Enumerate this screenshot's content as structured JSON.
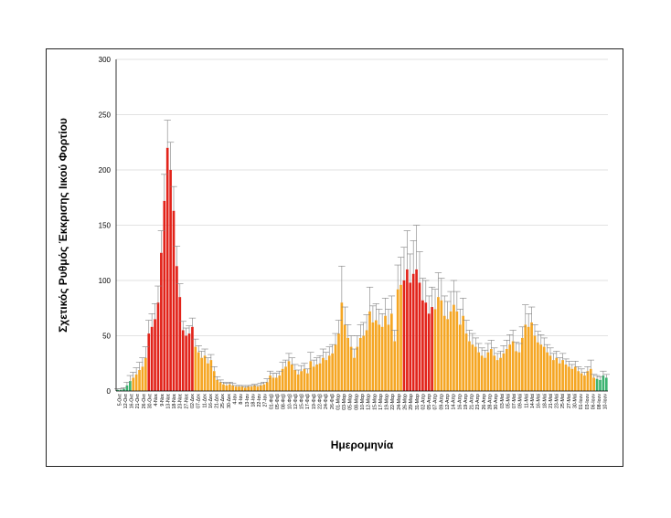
{
  "chart_data": {
    "type": "bar",
    "title": "",
    "xlabel": "Ημερομηνία",
    "ylabel": "Σχετικός Ρυθμός Έκκρισης Ιικού Φορτίου",
    "ylim": [
      0,
      300
    ],
    "yticks": [
      "0",
      "50",
      "100",
      "150",
      "200",
      "250",
      "300"
    ],
    "grid": true,
    "legend": "none",
    "colors": {
      "green": "#3cb371",
      "orange": "#f5a623",
      "red": "#e2231a",
      "error": "#808080",
      "grid": "#d9d9d9",
      "axis": "#000000"
    },
    "xlabels": [
      "5-Οκτ",
      "12-Οκτ",
      "16-Οκτ",
      "21-Οκτ",
      "26-Οκτ",
      "30-Οκτ",
      "4-Νοε",
      "9-Νοε",
      "13-Νοε",
      "18-Νοε",
      "23-Νοε",
      "27-Νοε",
      "02-Δεκ",
      "07-Δεκ",
      "11-Δεκ",
      "16-Δεκ",
      "21-Δεκ",
      "25-Δεκ",
      "30-Δεκ",
      "4-Ιαν",
      "8-Ιαν",
      "13-Ιαν",
      "18-Ιαν",
      "22-Ιαν",
      "27-Ιαν",
      "01-Φεβ",
      "05-Φεβ",
      "08-Φεβ",
      "10-Φεβ",
      "12-Φεβ",
      "15-Φεβ",
      "17-Φεβ",
      "19-Φεβ",
      "22-Φεβ",
      "24-Φεβ",
      "26-Φεβ",
      "01-Μαρ",
      "03-Μαρ",
      "05-Μαρ",
      "08-Μαρ",
      "10-Μαρ",
      "12-Μαρ",
      "15-Μαρ",
      "17-Μαρ",
      "19-Μαρ",
      "22-Μαρ",
      "24-Μαρ",
      "26-Μαρ",
      "29-Μαρ",
      "31-Μαρ",
      "02-Απρ",
      "05-Απρ",
      "07-Απρ",
      "09-Απρ",
      "12-Απρ",
      "14-Απρ",
      "16-Απρ",
      "19-Απρ",
      "21-Απρ",
      "23-Απρ",
      "26-Απρ",
      "28-Απρ",
      "30-Απρ",
      "03-Μαϊ",
      "05-Μαϊ",
      "07-Μαϊ",
      "09-Μαϊ",
      "11-Μαϊ",
      "14-Μαϊ",
      "16-Μαϊ",
      "18-Μαϊ",
      "21-Μαϊ",
      "23-Μαϊ",
      "25-Μαϊ",
      "27-Μαϊ",
      "30-Μαϊ",
      "01-Ιουν",
      "03-Ιουν",
      "06-Ιουν",
      "08-Ιουν",
      "10-Ιουν"
    ],
    "values": [
      1,
      1,
      2,
      5,
      9,
      12,
      15,
      19,
      22,
      30,
      52,
      58,
      65,
      80,
      125,
      172,
      220,
      200,
      163,
      113,
      85,
      55,
      50,
      52,
      58,
      40,
      35,
      30,
      32,
      25,
      28,
      18,
      10,
      8,
      6,
      5,
      6,
      5,
      4,
      4,
      4,
      3,
      4,
      4,
      5,
      4,
      5,
      6,
      8,
      14,
      12,
      12,
      14,
      20,
      22,
      27,
      24,
      19,
      15,
      18,
      20,
      16,
      27,
      22,
      24,
      25,
      30,
      28,
      32,
      34,
      42,
      52,
      80,
      60,
      48,
      40,
      30,
      40,
      48,
      50,
      55,
      72,
      62,
      64,
      60,
      58,
      68,
      60,
      70,
      45,
      92,
      96,
      100,
      110,
      98,
      106,
      110,
      98,
      82,
      80,
      70,
      76,
      74,
      85,
      82,
      68,
      65,
      72,
      78,
      72,
      60,
      68,
      52,
      45,
      42,
      40,
      35,
      32,
      30,
      35,
      38,
      32,
      28,
      30,
      34,
      38,
      42,
      45,
      36,
      35,
      48,
      60,
      58,
      62,
      50,
      44,
      42,
      40,
      35,
      32,
      28,
      30,
      25,
      28,
      24,
      22,
      20,
      22,
      18,
      16,
      14,
      18,
      20,
      12,
      11,
      10,
      14,
      12
    ],
    "errors": [
      1,
      1,
      1,
      3,
      5,
      5,
      6,
      7,
      8,
      10,
      12,
      12,
      14,
      15,
      20,
      24,
      25,
      25,
      22,
      18,
      12,
      8,
      7,
      7,
      8,
      7,
      6,
      6,
      6,
      5,
      5,
      4,
      3,
      2,
      2,
      2,
      2,
      2,
      1,
      1,
      1,
      1,
      1,
      1,
      1,
      1,
      2,
      2,
      3,
      4,
      4,
      4,
      4,
      6,
      6,
      7,
      6,
      5,
      4,
      5,
      5,
      4,
      8,
      6,
      6,
      7,
      8,
      7,
      8,
      8,
      10,
      12,
      33,
      16,
      12,
      10,
      8,
      10,
      12,
      12,
      14,
      22,
      15,
      15,
      14,
      12,
      16,
      14,
      16,
      10,
      22,
      25,
      30,
      35,
      26,
      30,
      40,
      28,
      20,
      20,
      16,
      18,
      18,
      22,
      20,
      18,
      16,
      18,
      22,
      18,
      14,
      16,
      12,
      10,
      10,
      8,
      8,
      7,
      7,
      8,
      8,
      7,
      6,
      6,
      7,
      8,
      9,
      10,
      8,
      8,
      10,
      18,
      12,
      14,
      10,
      10,
      9,
      8,
      7,
      7,
      6,
      6,
      5,
      6,
      5,
      5,
      4,
      5,
      4,
      4,
      3,
      4,
      8,
      3,
      3,
      3,
      4,
      3
    ],
    "categories_color": "green:0-4,orange:5-9,red:10-24,orange:25-91,red:92-101,orange:102-153,green:154-157"
  }
}
